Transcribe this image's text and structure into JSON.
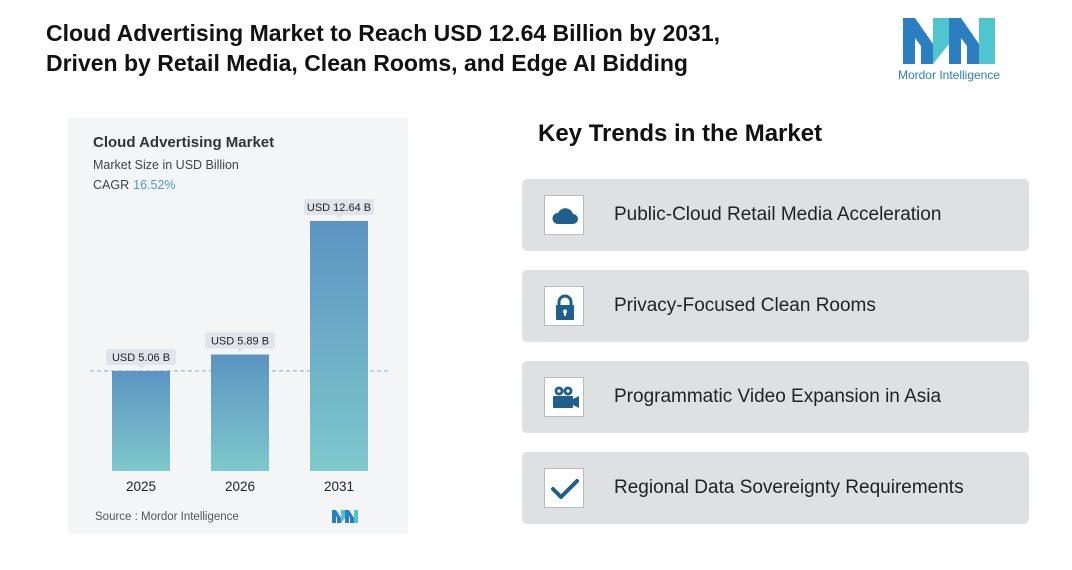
{
  "headline": {
    "line1": "Cloud Advertising Market to Reach USD 12.64 Billion by 2031,",
    "line2": "Driven by Retail Media, Clean Rooms, and Edge AI Bidding"
  },
  "logo": {
    "text": "Mordor Intelligence",
    "icon": "mordor-intelligence-logo"
  },
  "chart_data": {
    "type": "bar",
    "title": "Cloud Advertising Market",
    "subtitle": "Market Size in USD Billion",
    "cagr_label": "CAGR",
    "cagr_value": "16.52%",
    "categories": [
      "2025",
      "2026",
      "2031"
    ],
    "values": [
      5.06,
      5.89,
      12.64
    ],
    "data_labels": [
      "USD 5.06 B",
      "USD 5.89 B",
      "USD 12.64 B"
    ],
    "ylim": [
      0,
      12.64
    ],
    "reference_line": 5.06,
    "grid": false,
    "source": "Source :  Mordor Intelligence",
    "colors": {
      "bar_top": "#5b94c2",
      "bar_bottom": "#7fc8cc",
      "label_bg": "#dfe5ea",
      "ref_line": "#8fb8d0"
    }
  },
  "trends": {
    "title": "Key Trends in the Market",
    "items": [
      {
        "label": "Public-Cloud Retail Media Acceleration",
        "icon": "cloud-icon"
      },
      {
        "label": "Privacy-Focused Clean Rooms",
        "icon": "lock-icon"
      },
      {
        "label": "Programmatic Video Expansion in Asia",
        "icon": "video-camera-icon"
      },
      {
        "label": "Regional Data Sovereignty Requirements",
        "icon": "checkmark-icon"
      }
    ],
    "icon_color": "#1f5f8b"
  }
}
